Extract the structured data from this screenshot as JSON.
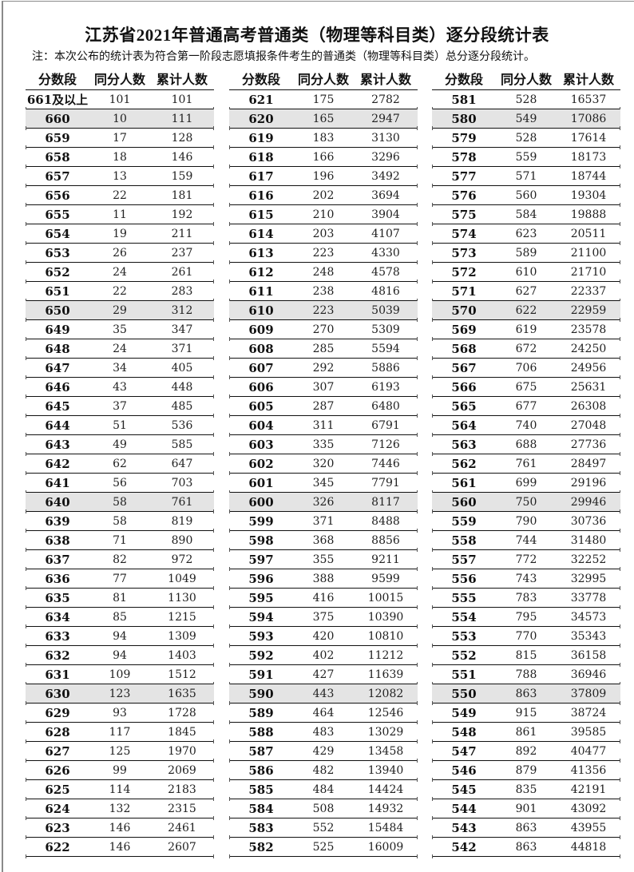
{
  "title": "江苏省2021年普通高考普通类（物理等科目类）逐分段统计表",
  "note": "注：本次公布的统计表为符合第一阶段志愿填报条件考生的普通类（物理等科目类）总分逐分段统计。",
  "headers": [
    "分数段",
    "同分人数",
    "累计人数"
  ],
  "shade_color": "#e4e4e4",
  "tables": [
    {
      "rows": [
        [
          "661及以上",
          "101",
          "101"
        ],
        [
          "660",
          "10",
          "111"
        ],
        [
          "659",
          "17",
          "128"
        ],
        [
          "658",
          "18",
          "146"
        ],
        [
          "657",
          "13",
          "159"
        ],
        [
          "656",
          "22",
          "181"
        ],
        [
          "655",
          "11",
          "192"
        ],
        [
          "654",
          "19",
          "211"
        ],
        [
          "653",
          "26",
          "237"
        ],
        [
          "652",
          "24",
          "261"
        ],
        [
          "651",
          "22",
          "283"
        ],
        [
          "650",
          "29",
          "312"
        ],
        [
          "649",
          "35",
          "347"
        ],
        [
          "648",
          "24",
          "371"
        ],
        [
          "647",
          "34",
          "405"
        ],
        [
          "646",
          "43",
          "448"
        ],
        [
          "645",
          "37",
          "485"
        ],
        [
          "644",
          "51",
          "536"
        ],
        [
          "643",
          "49",
          "585"
        ],
        [
          "642",
          "62",
          "647"
        ],
        [
          "641",
          "56",
          "703"
        ],
        [
          "640",
          "58",
          "761"
        ],
        [
          "639",
          "58",
          "819"
        ],
        [
          "638",
          "71",
          "890"
        ],
        [
          "637",
          "82",
          "972"
        ],
        [
          "636",
          "77",
          "1049"
        ],
        [
          "635",
          "81",
          "1130"
        ],
        [
          "634",
          "85",
          "1215"
        ],
        [
          "633",
          "94",
          "1309"
        ],
        [
          "632",
          "94",
          "1403"
        ],
        [
          "631",
          "109",
          "1512"
        ],
        [
          "630",
          "123",
          "1635"
        ],
        [
          "629",
          "93",
          "1728"
        ],
        [
          "628",
          "117",
          "1845"
        ],
        [
          "627",
          "125",
          "1970"
        ],
        [
          "626",
          "99",
          "2069"
        ],
        [
          "625",
          "114",
          "2183"
        ],
        [
          "624",
          "132",
          "2315"
        ],
        [
          "623",
          "146",
          "2461"
        ],
        [
          "622",
          "146",
          "2607"
        ]
      ]
    },
    {
      "rows": [
        [
          "621",
          "175",
          "2782"
        ],
        [
          "620",
          "165",
          "2947"
        ],
        [
          "619",
          "183",
          "3130"
        ],
        [
          "618",
          "166",
          "3296"
        ],
        [
          "617",
          "196",
          "3492"
        ],
        [
          "616",
          "202",
          "3694"
        ],
        [
          "615",
          "210",
          "3904"
        ],
        [
          "614",
          "203",
          "4107"
        ],
        [
          "613",
          "223",
          "4330"
        ],
        [
          "612",
          "248",
          "4578"
        ],
        [
          "611",
          "238",
          "4816"
        ],
        [
          "610",
          "223",
          "5039"
        ],
        [
          "609",
          "270",
          "5309"
        ],
        [
          "608",
          "285",
          "5594"
        ],
        [
          "607",
          "292",
          "5886"
        ],
        [
          "606",
          "307",
          "6193"
        ],
        [
          "605",
          "287",
          "6480"
        ],
        [
          "604",
          "311",
          "6791"
        ],
        [
          "603",
          "335",
          "7126"
        ],
        [
          "602",
          "320",
          "7446"
        ],
        [
          "601",
          "345",
          "7791"
        ],
        [
          "600",
          "326",
          "8117"
        ],
        [
          "599",
          "371",
          "8488"
        ],
        [
          "598",
          "368",
          "8856"
        ],
        [
          "597",
          "355",
          "9211"
        ],
        [
          "596",
          "388",
          "9599"
        ],
        [
          "595",
          "416",
          "10015"
        ],
        [
          "594",
          "375",
          "10390"
        ],
        [
          "593",
          "420",
          "10810"
        ],
        [
          "592",
          "402",
          "11212"
        ],
        [
          "591",
          "427",
          "11639"
        ],
        [
          "590",
          "443",
          "12082"
        ],
        [
          "589",
          "464",
          "12546"
        ],
        [
          "588",
          "483",
          "13029"
        ],
        [
          "587",
          "429",
          "13458"
        ],
        [
          "586",
          "482",
          "13940"
        ],
        [
          "585",
          "484",
          "14424"
        ],
        [
          "584",
          "508",
          "14932"
        ],
        [
          "583",
          "552",
          "15484"
        ],
        [
          "582",
          "525",
          "16009"
        ]
      ]
    },
    {
      "rows": [
        [
          "581",
          "528",
          "16537"
        ],
        [
          "580",
          "549",
          "17086"
        ],
        [
          "579",
          "528",
          "17614"
        ],
        [
          "578",
          "559",
          "18173"
        ],
        [
          "577",
          "571",
          "18744"
        ],
        [
          "576",
          "560",
          "19304"
        ],
        [
          "575",
          "584",
          "19888"
        ],
        [
          "574",
          "623",
          "20511"
        ],
        [
          "573",
          "589",
          "21100"
        ],
        [
          "572",
          "610",
          "21710"
        ],
        [
          "571",
          "627",
          "22337"
        ],
        [
          "570",
          "622",
          "22959"
        ],
        [
          "569",
          "619",
          "23578"
        ],
        [
          "568",
          "672",
          "24250"
        ],
        [
          "567",
          "706",
          "24956"
        ],
        [
          "566",
          "675",
          "25631"
        ],
        [
          "565",
          "677",
          "26308"
        ],
        [
          "564",
          "740",
          "27048"
        ],
        [
          "563",
          "688",
          "27736"
        ],
        [
          "562",
          "761",
          "28497"
        ],
        [
          "561",
          "699",
          "29196"
        ],
        [
          "560",
          "750",
          "29946"
        ],
        [
          "559",
          "790",
          "30736"
        ],
        [
          "558",
          "744",
          "31480"
        ],
        [
          "557",
          "772",
          "32252"
        ],
        [
          "556",
          "743",
          "32995"
        ],
        [
          "555",
          "783",
          "33778"
        ],
        [
          "554",
          "795",
          "34573"
        ],
        [
          "553",
          "770",
          "35343"
        ],
        [
          "552",
          "815",
          "36158"
        ],
        [
          "551",
          "788",
          "36946"
        ],
        [
          "550",
          "863",
          "37809"
        ],
        [
          "549",
          "915",
          "38724"
        ],
        [
          "548",
          "861",
          "39585"
        ],
        [
          "547",
          "892",
          "40477"
        ],
        [
          "546",
          "879",
          "41356"
        ],
        [
          "545",
          "835",
          "42191"
        ],
        [
          "544",
          "901",
          "43092"
        ],
        [
          "543",
          "863",
          "43955"
        ],
        [
          "542",
          "863",
          "44818"
        ]
      ]
    }
  ]
}
